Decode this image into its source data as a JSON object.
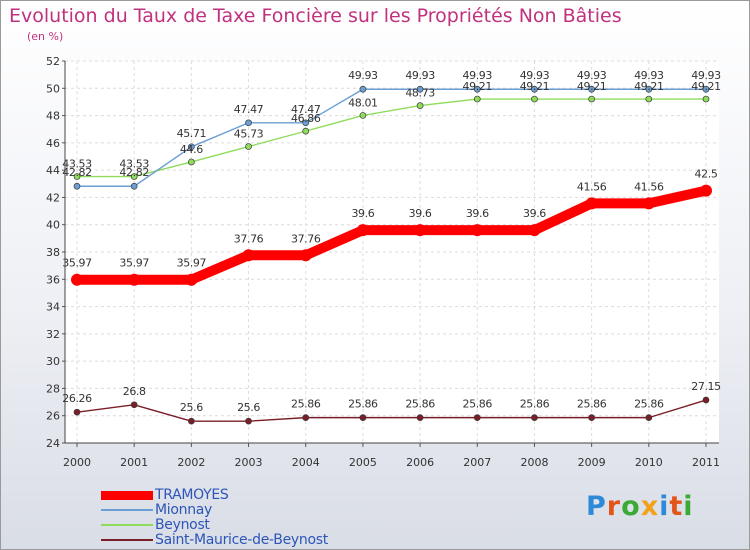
{
  "chart_data": {
    "type": "line",
    "title": "Evolution du Taux de Taxe Foncière sur les Propriétés Non Bâties",
    "subtitle": "(en %)",
    "xlabel": "",
    "ylabel": "",
    "ylim": [
      24,
      52
    ],
    "yticks": [
      "24",
      "26",
      "28",
      "30",
      "32",
      "34",
      "36",
      "38",
      "40",
      "42",
      "44",
      "46",
      "48",
      "50",
      "52"
    ],
    "categories": [
      "2000",
      "2001",
      "2002",
      "2003",
      "2004",
      "2005",
      "2006",
      "2007",
      "2008",
      "2009",
      "2010",
      "2011"
    ],
    "grid": true,
    "legend_position": "bottom-left",
    "series": [
      {
        "name": "TRAMOYES",
        "color": "#ff0000",
        "values": [
          35.97,
          35.97,
          35.97,
          37.76,
          37.76,
          39.6,
          39.6,
          39.6,
          39.6,
          41.56,
          41.56,
          42.5
        ],
        "labels": [
          "35.97",
          "35.97",
          "35.97",
          "37.76",
          "37.76",
          "39.6",
          "39.6",
          "39.6",
          "39.6",
          "41.56",
          "41.56",
          "42.5"
        ]
      },
      {
        "name": "Mionnay",
        "color": "#6b9fd4",
        "values": [
          42.82,
          42.82,
          45.71,
          47.47,
          47.47,
          49.93,
          49.93,
          49.93,
          49.93,
          49.93,
          49.93,
          49.93
        ],
        "labels": [
          "42.82",
          "42.82",
          "45.71",
          "47.47",
          "47.47",
          "49.93",
          "49.93",
          "49.93",
          "49.93",
          "49.93",
          "49.93",
          "49.93"
        ]
      },
      {
        "name": "Beynost",
        "color": "#8fdc5c",
        "values": [
          43.53,
          43.53,
          44.6,
          45.73,
          46.86,
          48.01,
          48.73,
          49.21,
          49.21,
          49.21,
          49.21,
          49.21
        ],
        "labels": [
          "43.53",
          "43.53",
          "44.6",
          "45.73",
          "46.86",
          "48.01",
          "48.73",
          "49.21",
          "49.21",
          "49.21",
          "49.21",
          "49.21"
        ]
      },
      {
        "name": "Saint-Maurice-de-Beynost",
        "color": "#7a1f28",
        "values": [
          26.26,
          26.8,
          25.6,
          25.6,
          25.86,
          25.86,
          25.86,
          25.86,
          25.86,
          25.86,
          25.86,
          27.15
        ],
        "labels": [
          "26.26",
          "26.8",
          "25.6",
          "25.6",
          "25.86",
          "25.86",
          "25.86",
          "25.86",
          "25.86",
          "25.86",
          "25.86",
          "27.15"
        ]
      }
    ]
  },
  "logo": {
    "text": "Proxiti"
  }
}
